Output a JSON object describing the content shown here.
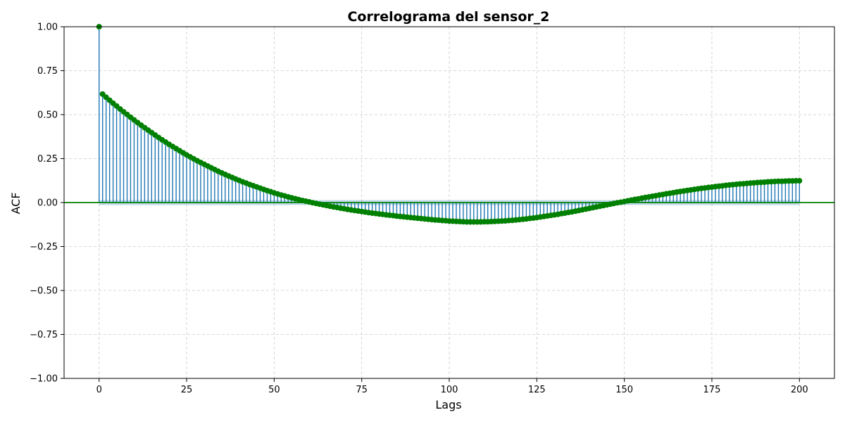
{
  "chart_data": {
    "type": "stem",
    "title": "Correlograma del sensor_2",
    "xlabel": "Lags",
    "ylabel": "ACF",
    "xlim": [
      -10,
      210
    ],
    "ylim": [
      -1.0,
      1.0
    ],
    "x_ticks": [
      0,
      25,
      50,
      75,
      100,
      125,
      150,
      175,
      200
    ],
    "x_tick_labels": [
      "0",
      "25",
      "50",
      "75",
      "100",
      "125",
      "150",
      "175",
      "200"
    ],
    "y_ticks": [
      -1.0,
      -0.75,
      -0.5,
      -0.25,
      0.0,
      0.25,
      0.5,
      0.75,
      1.0
    ],
    "y_tick_labels": [
      "−1.00",
      "−0.75",
      "−0.50",
      "−0.25",
      "0.00",
      "0.25",
      "0.50",
      "0.75",
      "1.00"
    ],
    "grid": true,
    "confidence_band": 0.014,
    "colors": {
      "stem": "#1f77b4",
      "marker": "#008000",
      "baseline": "#008000",
      "band": "#1f77b4",
      "grid": "#cccccc"
    },
    "lags": [
      0,
      1,
      2,
      3,
      4,
      5,
      6,
      7,
      8,
      9,
      10,
      11,
      12,
      13,
      14,
      15,
      16,
      17,
      18,
      19,
      20,
      21,
      22,
      23,
      24,
      25,
      26,
      27,
      28,
      29,
      30,
      31,
      32,
      33,
      34,
      35,
      36,
      37,
      38,
      39,
      40,
      41,
      42,
      43,
      44,
      45,
      46,
      47,
      48,
      49,
      50,
      51,
      52,
      53,
      54,
      55,
      56,
      57,
      58,
      59,
      60,
      61,
      62,
      63,
      64,
      65,
      66,
      67,
      68,
      69,
      70,
      71,
      72,
      73,
      74,
      75,
      76,
      77,
      78,
      79,
      80,
      81,
      82,
      83,
      84,
      85,
      86,
      87,
      88,
      89,
      90,
      91,
      92,
      93,
      94,
      95,
      96,
      97,
      98,
      99,
      100,
      101,
      102,
      103,
      104,
      105,
      106,
      107,
      108,
      109,
      110,
      111,
      112,
      113,
      114,
      115,
      116,
      117,
      118,
      119,
      120,
      121,
      122,
      123,
      124,
      125,
      126,
      127,
      128,
      129,
      130,
      131,
      132,
      133,
      134,
      135,
      136,
      137,
      138,
      139,
      140,
      141,
      142,
      143,
      144,
      145,
      146,
      147,
      148,
      149,
      150,
      151,
      152,
      153,
      154,
      155,
      156,
      157,
      158,
      159,
      160,
      161,
      162,
      163,
      164,
      165,
      166,
      167,
      168,
      169,
      170,
      171,
      172,
      173,
      174,
      175,
      176,
      177,
      178,
      179,
      180,
      181,
      182,
      183,
      184,
      185,
      186,
      187,
      188,
      189,
      190,
      191,
      192,
      193,
      194,
      195,
      196,
      197,
      198,
      199,
      200
    ],
    "acf": [
      1.0,
      0.617,
      0.599,
      0.582,
      0.565,
      0.549,
      0.532,
      0.516,
      0.501,
      0.485,
      0.47,
      0.455,
      0.44,
      0.426,
      0.412,
      0.398,
      0.384,
      0.37,
      0.357,
      0.344,
      0.331,
      0.319,
      0.307,
      0.295,
      0.283,
      0.271,
      0.26,
      0.249,
      0.238,
      0.228,
      0.218,
      0.208,
      0.198,
      0.188,
      0.178,
      0.169,
      0.16,
      0.151,
      0.143,
      0.134,
      0.126,
      0.118,
      0.111,
      0.103,
      0.096,
      0.089,
      0.082,
      0.075,
      0.068,
      0.062,
      0.055,
      0.049,
      0.043,
      0.038,
      0.032,
      0.027,
      0.022,
      0.017,
      0.012,
      0.008,
      0.004,
      -0.001,
      -0.005,
      -0.009,
      -0.013,
      -0.017,
      -0.021,
      -0.025,
      -0.028,
      -0.032,
      -0.035,
      -0.039,
      -0.042,
      -0.045,
      -0.048,
      -0.051,
      -0.054,
      -0.057,
      -0.06,
      -0.062,
      -0.065,
      -0.067,
      -0.07,
      -0.072,
      -0.074,
      -0.077,
      -0.079,
      -0.081,
      -0.083,
      -0.085,
      -0.087,
      -0.089,
      -0.091,
      -0.093,
      -0.095,
      -0.097,
      -0.099,
      -0.1,
      -0.102,
      -0.103,
      -0.105,
      -0.106,
      -0.107,
      -0.108,
      -0.109,
      -0.11,
      -0.11,
      -0.11,
      -0.11,
      -0.11,
      -0.109,
      -0.109,
      -0.108,
      -0.107,
      -0.106,
      -0.105,
      -0.104,
      -0.102,
      -0.101,
      -0.099,
      -0.097,
      -0.095,
      -0.093,
      -0.09,
      -0.088,
      -0.085,
      -0.082,
      -0.079,
      -0.076,
      -0.073,
      -0.07,
      -0.067,
      -0.063,
      -0.06,
      -0.056,
      -0.053,
      -0.049,
      -0.045,
      -0.041,
      -0.037,
      -0.033,
      -0.029,
      -0.025,
      -0.021,
      -0.017,
      -0.013,
      -0.009,
      -0.005,
      -0.001,
      0.002,
      0.006,
      0.01,
      0.014,
      0.018,
      0.021,
      0.025,
      0.029,
      0.032,
      0.036,
      0.039,
      0.043,
      0.046,
      0.05,
      0.053,
      0.056,
      0.06,
      0.063,
      0.066,
      0.069,
      0.072,
      0.075,
      0.078,
      0.081,
      0.083,
      0.086,
      0.088,
      0.091,
      0.093,
      0.095,
      0.098,
      0.1,
      0.102,
      0.104,
      0.106,
      0.107,
      0.109,
      0.111,
      0.112,
      0.114,
      0.115,
      0.116,
      0.118,
      0.119,
      0.12,
      0.121,
      0.121,
      0.122,
      0.123,
      0.123,
      0.124,
      0.124,
      0.125,
      0.125,
      0.125,
      0.125
    ]
  }
}
